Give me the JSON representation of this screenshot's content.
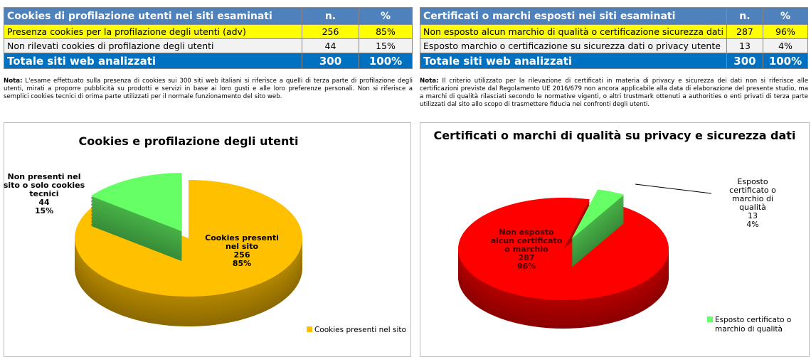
{
  "table_cookies": {
    "header": [
      "Cookies di profilazione utenti nei siti esaminati",
      "n.",
      "%"
    ],
    "rows": [
      [
        "Presenza cookies per la profilazione degli utenti (adv)",
        "256",
        "85%"
      ],
      [
        "Non rilevati cookies di profilazione degli utenti",
        "44",
        "15%"
      ]
    ],
    "total": [
      "Totale siti web analizzati",
      "300",
      "100%"
    ],
    "note_label": "Nota:",
    "note": "L'esame effettuato sulla presenza di cookies sui 300 siti web italiani si riferisce a quelli di terza parte di profilazione degli utenti, mirati a proporre pubblicità su prodotti e servizi in base ai loro gusti e alle loro preferenze personali. Non si riferisce a semplici cookies tecnici di orima parte utilizzati per il normale funzionamento del sito web."
  },
  "table_cert": {
    "header": [
      "Certificati o marchi esposti nei siti esaminati",
      "n.",
      "%"
    ],
    "rows": [
      [
        "Non esposto alcun marchio di qualità o certificazione sicurezza dati",
        "287",
        "96%"
      ],
      [
        "Esposto marchio o certificazione su sicurezza dati o privacy utente",
        "13",
        "4%"
      ]
    ],
    "total": [
      "Totale siti web analizzati",
      "300",
      "100%"
    ],
    "note_label": "Nota:",
    "note": "Il criterio utilizzato per la rilevazione di certificati in materia di privacy e sicurezza dei dati non si riferisce alle certificazioni previste dal Regolamento UE 2016/679 non ancora applicabile alla data di elaborazione del presente studio, ma a marchi di qualità rilasciati secondo le normative vigenti, o altri trustmark ottenuti a authorities o enti privati di terza parte  utilizzati dal sito allo scopo di trasmettere fiducia nei confronti degli utenti."
  },
  "chart_data": [
    {
      "type": "pie",
      "title": "Cookies e profilazione degli utenti",
      "slices": [
        {
          "label": "Cookies presenti nel sito",
          "value": 256,
          "percent": "85%",
          "color": "#ffc000",
          "label_lines": [
            "Cookies presenti",
            "nel sito"
          ]
        },
        {
          "label": "Non presenti nel sito o solo cookies tecnici",
          "value": 44,
          "percent": "15%",
          "color": "#66ff66",
          "label_lines": [
            "Non presenti nel",
            "sito o solo cookies",
            "tecnici"
          ]
        }
      ],
      "legend": [
        "Cookies presenti nel sito"
      ],
      "legend_placement": "bottom-right"
    },
    {
      "type": "pie",
      "title": "Certificati o marchi di qualità su privacy e sicurezza dati",
      "slices": [
        {
          "label": "Non esposto alcun certificato o marchio",
          "value": 287,
          "percent": "96%",
          "color": "#ff0000",
          "label_lines": [
            "Non esposto",
            "alcun certificato",
            "o marchio"
          ]
        },
        {
          "label": "Esposto certificato o marchio di qualità",
          "value": 13,
          "percent": "4%",
          "color": "#66ff66",
          "label_lines": [
            "Esposto",
            "certificato o",
            "marchio di",
            "qualità"
          ]
        }
      ],
      "legend": [
        "Esposto certificato o marchio di qualità"
      ],
      "legend_placement": "bottom-right"
    }
  ]
}
